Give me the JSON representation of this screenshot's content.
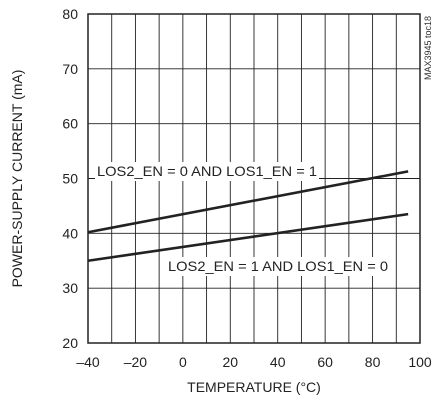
{
  "chart_data": {
    "type": "line",
    "xlabel": "TEMPERATURE (°C)",
    "ylabel": "POWER-SUPPLY CURRENT (mA)",
    "xlim": [
      -40,
      100
    ],
    "ylim": [
      20,
      80
    ],
    "xticks": [
      -40,
      -20,
      0,
      20,
      40,
      60,
      80,
      100
    ],
    "yticks": [
      20,
      30,
      40,
      50,
      60,
      70,
      80
    ],
    "x_minor_step": 10,
    "grid": true,
    "series": [
      {
        "name": "LOS2_EN = 0 AND LOS1_EN = 1",
        "x": [
          -40,
          95
        ],
        "y": [
          40.2,
          51.3
        ],
        "color": "#222222"
      },
      {
        "name": "LOS2_EN = 1 AND LOS1_EN = 0",
        "x": [
          -40,
          95
        ],
        "y": [
          35.0,
          43.5
        ],
        "color": "#222222"
      }
    ],
    "annotations": [
      {
        "text": "LOS2_EN = 0 AND LOS1_EN = 1",
        "series": 0
      },
      {
        "text": "LOS2_EN = 1 AND LOS1_EN = 0",
        "series": 1
      }
    ],
    "figure_code": "MAX3945 toc18"
  }
}
